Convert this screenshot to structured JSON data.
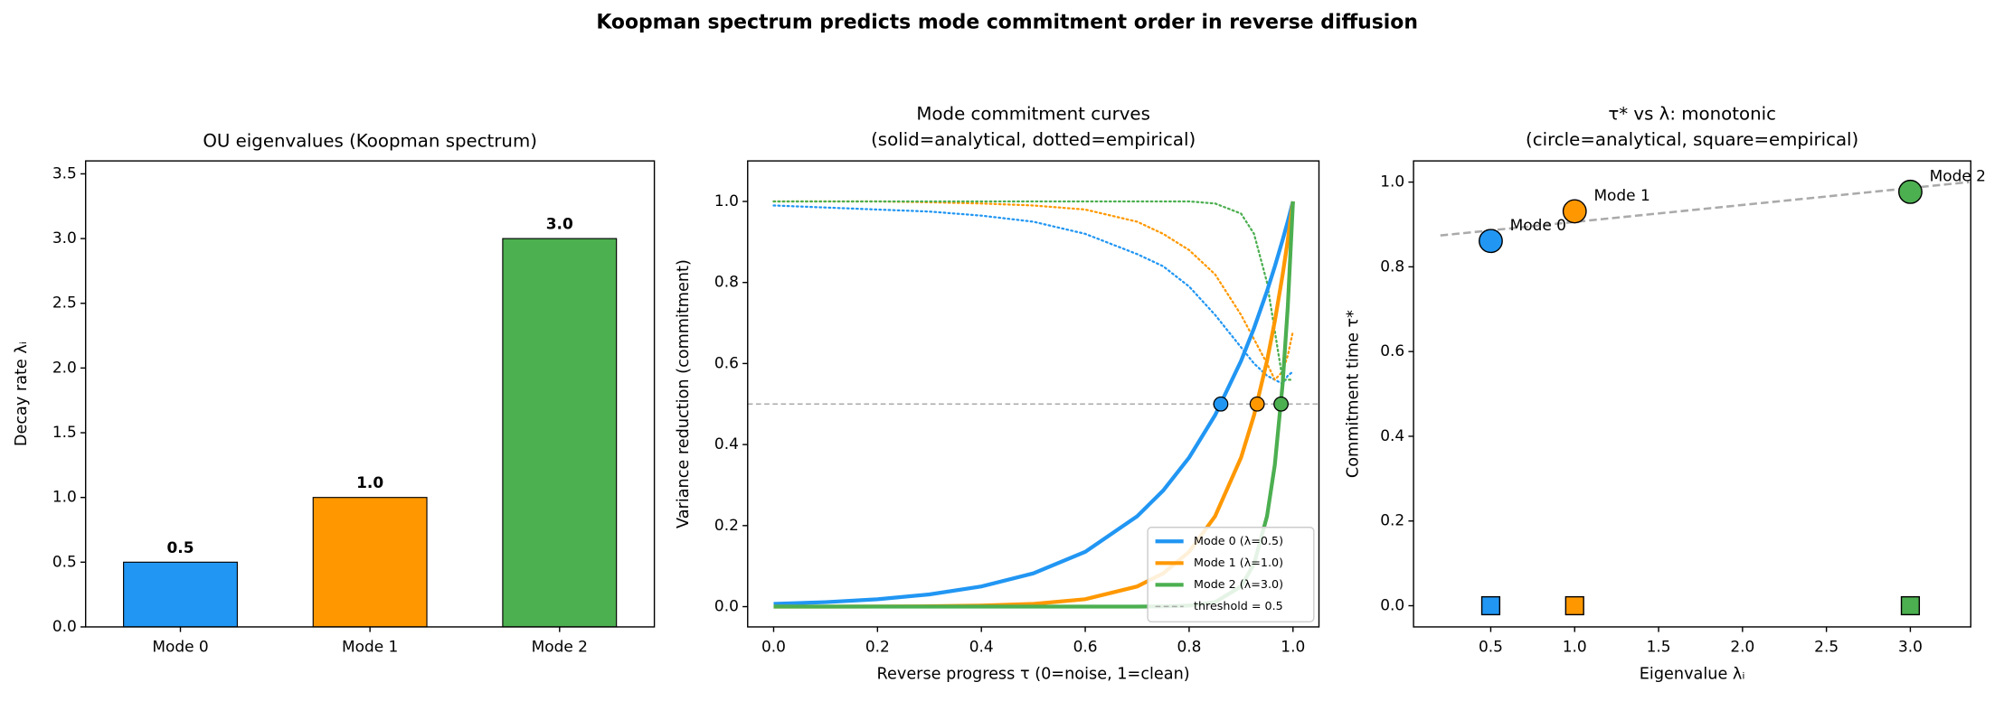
{
  "suptitle": "Koopman spectrum predicts mode commitment order in reverse diffusion",
  "chart_data": [
    {
      "type": "bar",
      "title": "OU eigenvalues (Koopman spectrum)",
      "ylabel": "Decay rate λᵢ",
      "categories": [
        "Mode 0",
        "Mode 1",
        "Mode 2"
      ],
      "values": [
        0.5,
        1.0,
        3.0
      ],
      "value_labels": [
        "0.5",
        "1.0",
        "3.0"
      ],
      "colors": [
        "#2196f3",
        "#ff9800",
        "#4caf50"
      ],
      "ylim": [
        0,
        3.6
      ],
      "yticks": [
        {
          "value": 0,
          "label": "0.0"
        },
        0.5,
        {
          "value": 1,
          "label": "1.0"
        },
        1.5,
        {
          "value": 2,
          "label": "2.0"
        },
        2.5,
        {
          "value": 3,
          "label": "3.0"
        },
        3.5
      ]
    },
    {
      "type": "line",
      "title": [
        "Mode commitment curves",
        "(solid=analytical, dotted=empirical)"
      ],
      "xlabel": "Reverse progress τ (0=noise, 1=clean)",
      "ylabel": "Variance reduction (commitment)",
      "x": [
        0,
        0.1,
        0.2,
        0.3,
        0.4,
        0.5,
        0.6,
        0.7,
        0.75,
        0.8,
        0.85,
        0.9,
        0.925,
        0.95,
        0.965,
        0.98,
        0.99,
        1.0
      ],
      "series": [
        {
          "name": "Mode 0 (λ=0.5)",
          "color": "#2196f3",
          "values": [
            0.0067,
            0.0111,
            0.0183,
            0.0302,
            0.0498,
            0.0821,
            0.1353,
            0.2231,
            0.2865,
            0.3679,
            0.4724,
            0.6065,
            0.6873,
            0.7788,
            0.8395,
            0.9048,
            0.9512,
            1
          ]
        },
        {
          "name": "Mode 1 (λ=1.0)",
          "color": "#ff9800",
          "values": [
            5e-05,
            0.0001,
            0.0003,
            0.0009,
            0.0025,
            0.0067,
            0.0183,
            0.0498,
            0.0821,
            0.1353,
            0.2231,
            0.3679,
            0.4724,
            0.6065,
            0.7047,
            0.8187,
            0.9048,
            1
          ]
        },
        {
          "name": "Mode 2 (λ=3.0)",
          "color": "#4caf50",
          "values": [
            0,
            0,
            0,
            0,
            0,
            0,
            0,
            0.0001,
            0.0006,
            0.0025,
            0.0111,
            0.0498,
            0.1054,
            0.2231,
            0.3499,
            0.5488,
            0.7408,
            1
          ]
        }
      ],
      "empirical_series": [
        {
          "color": "#2196f3",
          "values": [
            0.99,
            0.985,
            0.98,
            0.975,
            0.965,
            0.95,
            0.92,
            0.87,
            0.84,
            0.79,
            0.72,
            0.64,
            0.6,
            0.57,
            0.56,
            0.55,
            0.57,
            0.58
          ]
        },
        {
          "color": "#ff9800",
          "values": [
            1.0,
            1.0,
            1.0,
            0.998,
            0.995,
            0.99,
            0.98,
            0.95,
            0.92,
            0.88,
            0.82,
            0.72,
            0.66,
            0.6,
            0.56,
            0.58,
            0.62,
            0.68
          ]
        },
        {
          "color": "#4caf50",
          "values": [
            1.0,
            1.0,
            1.0,
            1.0,
            1.0,
            1.0,
            1.0,
            1.0,
            1.0,
            1.0,
            0.995,
            0.97,
            0.92,
            0.8,
            0.68,
            0.56,
            0.56,
            0.56
          ]
        }
      ],
      "commit_points": {
        "x": [
          0.861,
          0.931,
          0.977
        ],
        "values": [
          0.5,
          0.5,
          0.5
        ]
      },
      "threshold": {
        "value": 0.5,
        "label": "threshold = 0.5"
      },
      "legend": "lower right",
      "xlim": [
        -0.05,
        1.05
      ],
      "ylim": [
        -0.05,
        1.1
      ],
      "xticks": [
        {
          "value": 0,
          "label": "0.0"
        },
        0.2,
        0.4,
        0.6,
        0.8,
        {
          "value": 1,
          "label": "1.0"
        }
      ],
      "yticks": [
        {
          "value": 0,
          "label": "0.0"
        },
        0.2,
        0.4,
        0.6,
        0.8,
        {
          "value": 1,
          "label": "1.0"
        }
      ]
    },
    {
      "type": "scatter",
      "title": [
        "τ* vs λ: monotonic",
        "(circle=analytical, square=empirical)"
      ],
      "xlabel": "Eigenvalue λᵢ",
      "ylabel": "Commitment time τ*",
      "series": [
        {
          "marker": "circle",
          "x": [
            0.5,
            1.0,
            3.0
          ],
          "values": [
            0.861,
            0.931,
            0.977
          ],
          "colors": [
            "#2196f3",
            "#ff9800",
            "#4caf50"
          ]
        },
        {
          "marker": "square",
          "x": [
            0.5,
            1.0,
            3.0
          ],
          "values": [
            0,
            0,
            0
          ],
          "colors": [
            "#2196f3",
            "#ff9800",
            "#4caf50"
          ]
        }
      ],
      "annotations": [
        "Mode 0",
        "Mode 1",
        "Mode 2"
      ],
      "trend": {
        "x": [
          0.2,
          3.35
        ],
        "values": [
          0.874,
          1.0
        ]
      },
      "xlim": [
        0.04,
        3.36
      ],
      "ylim": [
        -0.05,
        1.05
      ],
      "xticks": [
        0.5,
        {
          "value": 1,
          "label": "1.0"
        },
        1.5,
        {
          "value": 2,
          "label": "2.0"
        },
        2.5,
        {
          "value": 3,
          "label": "3.0"
        }
      ],
      "yticks": [
        {
          "value": 0,
          "label": "0.0"
        },
        0.2,
        0.4,
        0.6,
        0.8,
        {
          "value": 1,
          "label": "1.0"
        }
      ]
    }
  ]
}
